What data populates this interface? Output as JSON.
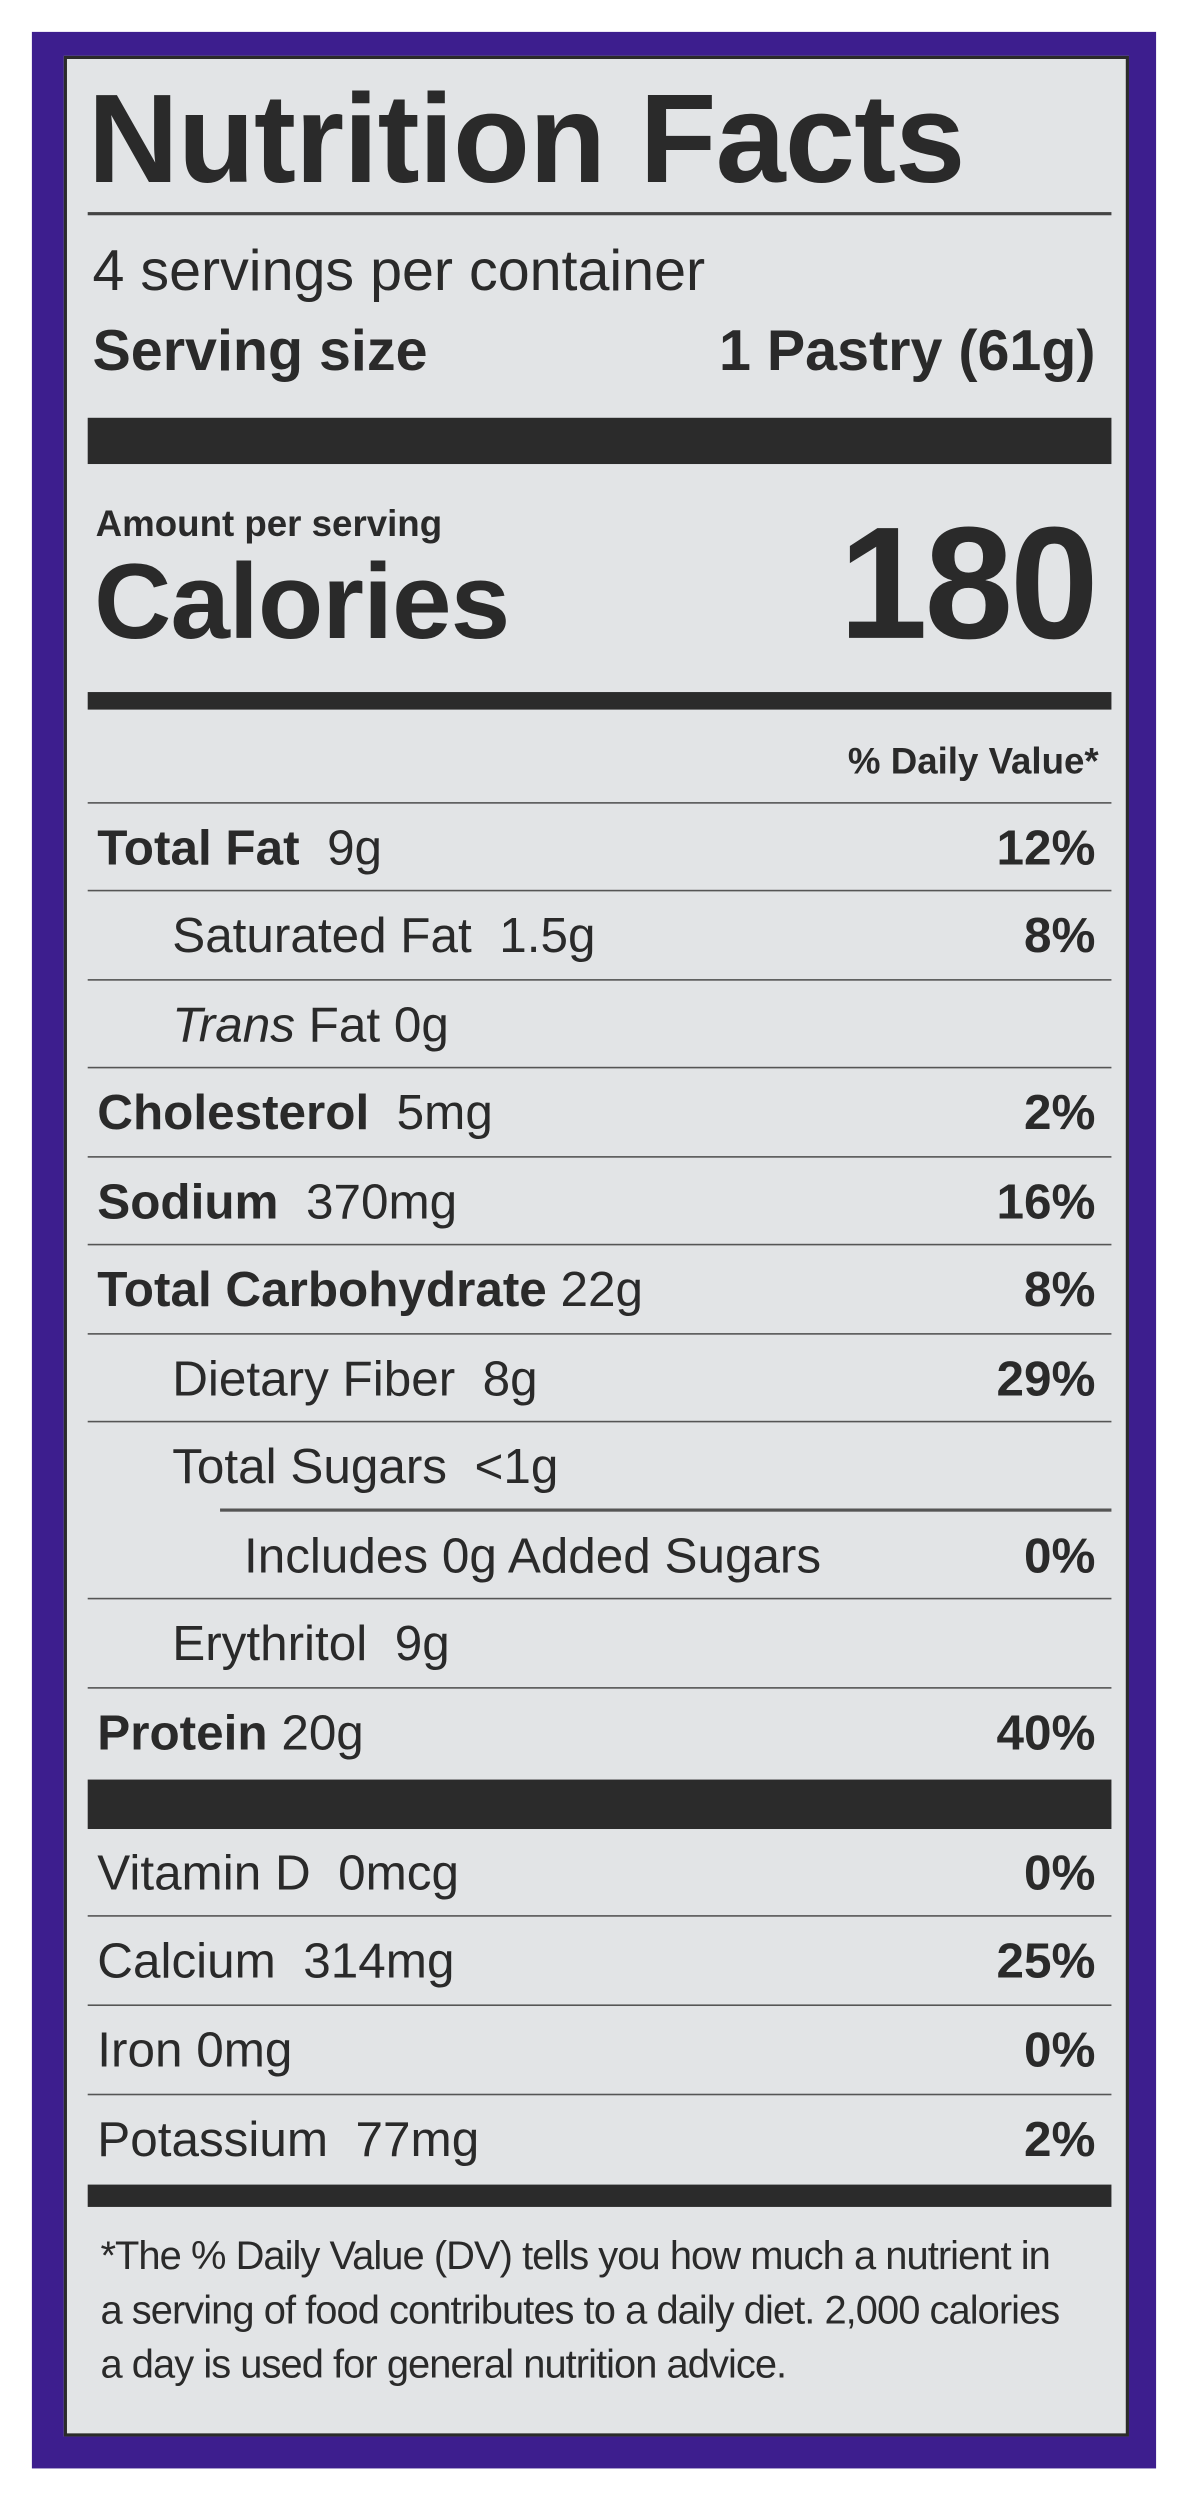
{
  "label": {
    "title": "Nutrition Facts",
    "servings_per_container": "4 servings per container",
    "serving_size_label": "Serving size",
    "serving_size_value": "1 Pastry (61g)",
    "amount_per_serving": "Amount per serving",
    "calories_label": "Calories",
    "calories_value": "180",
    "daily_value_header": "% Daily Value*",
    "nutrients": [
      {
        "name": "Total Fat",
        "amount": "9g",
        "dv": "12%"
      },
      {
        "name": "Saturated Fat",
        "amount": "1.5g",
        "dv": "8%"
      },
      {
        "name_italic": "Trans",
        "name": "Fat",
        "amount": "0g",
        "dv": ""
      },
      {
        "name": "Cholesterol",
        "amount": "5mg",
        "dv": "2%"
      },
      {
        "name": "Sodium",
        "amount": "370mg",
        "dv": "16%"
      },
      {
        "name": "Total Carbohydrate",
        "amount": "22g",
        "dv": "8%"
      },
      {
        "name": "Dietary Fiber",
        "amount": "8g",
        "dv": "29%"
      },
      {
        "name": "Total Sugars",
        "amount": "<1g",
        "dv": ""
      },
      {
        "name": "Includes 0g Added Sugars",
        "amount": "",
        "dv": "0%"
      },
      {
        "name": "Erythritol",
        "amount": "9g",
        "dv": ""
      },
      {
        "name": "Protein",
        "amount": "20g",
        "dv": "40%"
      }
    ],
    "vitamins": [
      {
        "name": "Vitamin D",
        "amount": "0mcg",
        "dv": "0%"
      },
      {
        "name": "Calcium",
        "amount": "314mg",
        "dv": "25%"
      },
      {
        "name": "Iron",
        "amount": "0mg",
        "dv": "0%"
      },
      {
        "name": "Potassium",
        "amount": "77mg",
        "dv": "2%"
      }
    ],
    "footnote": "*The % Daily Value (DV) tells you how much a nutrient in a serving of food contributes to a daily diet. 2,000 calories a day is used for general nutrition advice."
  },
  "colors": {
    "border": "#3d1e8e",
    "panel": "#e2e4e6",
    "text": "#2a2a2a"
  }
}
